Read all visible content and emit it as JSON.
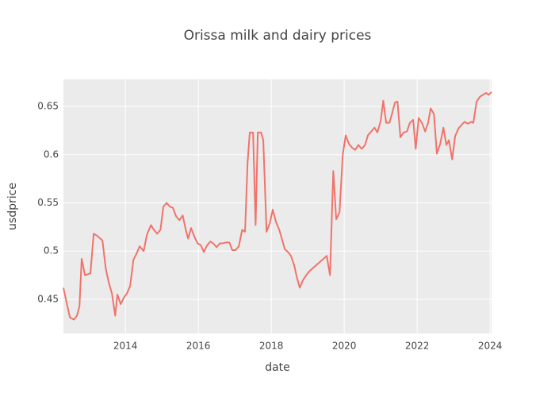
{
  "chart_data": {
    "type": "line",
    "title": "Orissa milk and dairy prices",
    "x_label": "date",
    "y_label": "usdprice",
    "xlim": [
      2012.3,
      2024.04
    ],
    "xticks": [
      2014,
      2016,
      2018,
      2020,
      2022,
      2024
    ],
    "ylim": [
      0.4146,
      0.678
    ],
    "yticks": [
      0.45,
      0.5,
      0.55,
      0.6,
      0.65
    ],
    "grid": true,
    "series": [
      {
        "name": "usdprice",
        "color": "#f0736b",
        "x": [
          2012.3,
          2012.39,
          2012.48,
          2012.59,
          2012.67,
          2012.74,
          2012.8,
          2012.89,
          2013.04,
          2013.13,
          2013.22,
          2013.37,
          2013.46,
          2013.54,
          2013.63,
          2013.72,
          2013.78,
          2013.87,
          2013.96,
          2014.04,
          2014.13,
          2014.22,
          2014.3,
          2014.39,
          2014.5,
          2014.59,
          2014.7,
          2014.78,
          2014.87,
          2014.96,
          2015.04,
          2015.13,
          2015.22,
          2015.3,
          2015.39,
          2015.48,
          2015.57,
          2015.65,
          2015.72,
          2015.8,
          2015.89,
          2015.98,
          2016.07,
          2016.15,
          2016.24,
          2016.33,
          2016.41,
          2016.5,
          2016.59,
          2016.67,
          2016.76,
          2016.85,
          2016.93,
          2017.02,
          2017.11,
          2017.2,
          2017.28,
          2017.35,
          2017.41,
          2017.5,
          2017.57,
          2017.63,
          2017.72,
          2017.78,
          2017.87,
          2017.96,
          2018.04,
          2018.13,
          2018.22,
          2018.28,
          2018.37,
          2018.46,
          2018.54,
          2018.63,
          2018.7,
          2018.78,
          2018.87,
          2018.96,
          2019.04,
          2019.52,
          2019.61,
          2019.7,
          2019.78,
          2019.87,
          2019.96,
          2020.04,
          2020.13,
          2020.22,
          2020.3,
          2020.39,
          2020.48,
          2020.57,
          2020.65,
          2020.74,
          2020.83,
          2020.91,
          2021.0,
          2021.07,
          2021.15,
          2021.24,
          2021.3,
          2021.39,
          2021.46,
          2021.54,
          2021.63,
          2021.72,
          2021.8,
          2021.89,
          2021.96,
          2022.04,
          2022.13,
          2022.22,
          2022.3,
          2022.37,
          2022.46,
          2022.54,
          2022.63,
          2022.72,
          2022.8,
          2022.87,
          2022.96,
          2023.04,
          2023.13,
          2023.22,
          2023.3,
          2023.39,
          2023.48,
          2023.54,
          2023.63,
          2023.72,
          2023.8,
          2023.89,
          2023.96,
          2024.04
        ],
        "values": [
          0.462,
          0.446,
          0.431,
          0.429,
          0.433,
          0.443,
          0.492,
          0.475,
          0.477,
          0.518,
          0.516,
          0.511,
          0.482,
          0.468,
          0.456,
          0.433,
          0.455,
          0.445,
          0.452,
          0.456,
          0.464,
          0.491,
          0.497,
          0.505,
          0.5,
          0.517,
          0.527,
          0.522,
          0.518,
          0.522,
          0.546,
          0.55,
          0.546,
          0.545,
          0.536,
          0.532,
          0.537,
          0.523,
          0.513,
          0.524,
          0.515,
          0.508,
          0.506,
          0.499,
          0.506,
          0.51,
          0.508,
          0.504,
          0.508,
          0.508,
          0.509,
          0.509,
          0.501,
          0.501,
          0.505,
          0.522,
          0.52,
          0.592,
          0.623,
          0.623,
          0.527,
          0.623,
          0.623,
          0.615,
          0.52,
          0.529,
          0.543,
          0.53,
          0.522,
          0.514,
          0.502,
          0.499,
          0.495,
          0.485,
          0.473,
          0.462,
          0.47,
          0.475,
          0.479,
          0.495,
          0.475,
          0.583,
          0.533,
          0.54,
          0.6,
          0.62,
          0.611,
          0.607,
          0.605,
          0.61,
          0.606,
          0.61,
          0.62,
          0.624,
          0.628,
          0.623,
          0.635,
          0.656,
          0.633,
          0.633,
          0.641,
          0.654,
          0.655,
          0.618,
          0.623,
          0.624,
          0.633,
          0.636,
          0.606,
          0.638,
          0.633,
          0.624,
          0.633,
          0.648,
          0.642,
          0.601,
          0.611,
          0.628,
          0.61,
          0.615,
          0.595,
          0.619,
          0.627,
          0.631,
          0.634,
          0.632,
          0.634,
          0.633,
          0.655,
          0.66,
          0.662,
          0.664,
          0.662,
          0.665
        ]
      }
    ]
  }
}
